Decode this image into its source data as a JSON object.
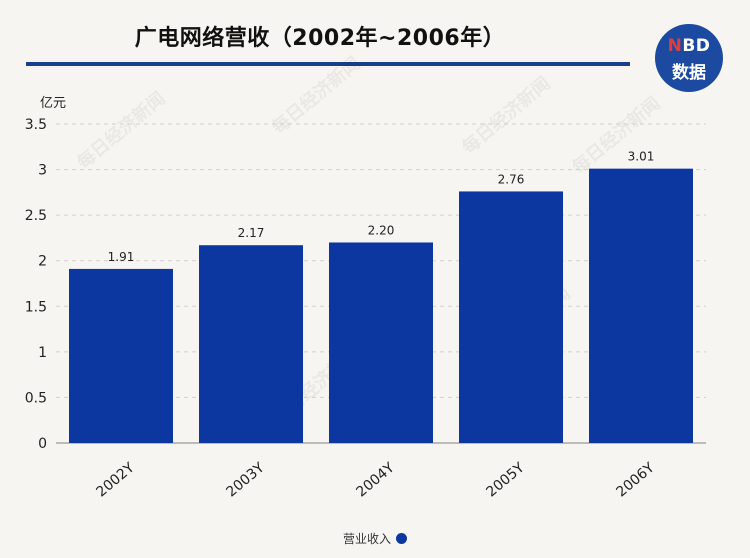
{
  "chart_data": {
    "type": "bar",
    "title": "广电网络营收（2002年~2006年）",
    "ylabel": "亿元",
    "categories": [
      "2002Y",
      "2003Y",
      "2004Y",
      "2005Y",
      "2006Y"
    ],
    "series": [
      {
        "name": "营业收入",
        "values": [
          1.91,
          2.17,
          2.2,
          2.76,
          3.01
        ],
        "labels": [
          "1.91",
          "2.17",
          "2.20",
          "2.76",
          "3.01"
        ]
      }
    ],
    "ylim": [
      0,
      3.5
    ],
    "yticks": [
      "0",
      "0.5",
      "1",
      "1.5",
      "2",
      "2.5",
      "3",
      "3.5"
    ],
    "grid": true,
    "legend_position": "bottom-center"
  },
  "logo": {
    "top": "NBD",
    "top_accent": "N",
    "top_rest": "BD",
    "bottom": "数据",
    "watermark": "每日经济新闻"
  },
  "colors": {
    "bar": "#0d37a0",
    "title_rule": "#1a3d8f",
    "logo_bg": "#1b4aa0",
    "grid": "#d0d0d0"
  }
}
